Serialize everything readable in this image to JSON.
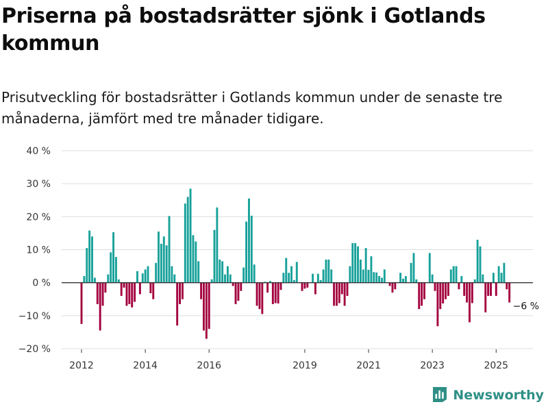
{
  "title": "Priserna på bostadsrätter sjönk i Gotlands kommun",
  "subtitle": "Prisutveckling för bostadsrätter i Gotlands kommun under de senaste tre månaderna, jämfört med tre månader tidigare.",
  "brand": {
    "name": "Newsworthy",
    "icon": "newsworthy-logo-icon"
  },
  "colors": {
    "positive": "#17a19a",
    "negative": "#a3003d",
    "grid": "#dddddd",
    "zero_line": "#333333"
  },
  "chart_data": {
    "type": "bar",
    "title": "Priserna på bostadsrätter sjönk i Gotlands kommun",
    "subtitle": "Prisutveckling för bostadsrätter i Gotlands kommun under de senaste tre månaderna, jämfört med tre månader tidigare.",
    "xlabel": "",
    "ylabel": "",
    "ylim": [
      -20,
      40
    ],
    "y_ticks": [
      40,
      30,
      20,
      10,
      0,
      -10,
      -20
    ],
    "y_tick_labels": [
      "40 %",
      "30 %",
      "20 %",
      "10 %",
      "0 %",
      "−10 %",
      "−20 %"
    ],
    "x_tick_labels": [
      "2012",
      "2014",
      "2016",
      "2019",
      "2021",
      "2023",
      "2025"
    ],
    "x_tick_months": [
      0,
      24,
      48,
      84,
      108,
      132,
      156
    ],
    "start": "2012-01",
    "end": "2025-06",
    "grid": true,
    "annotations": [
      {
        "text": "−6 %",
        "month": 161,
        "value": -6
      }
    ],
    "values": [
      -12.5,
      2,
      10.5,
      15.8,
      14,
      1.5,
      -6.5,
      -14.5,
      -7,
      -3,
      2.5,
      9.2,
      15.3,
      7.8,
      1,
      -4,
      -1.5,
      -7,
      -6.5,
      -7.5,
      -5.8,
      3.5,
      -3.5,
      2.8,
      4,
      5,
      -3.2,
      -5,
      6,
      15.5,
      11.8,
      14,
      11.3,
      20.2,
      5,
      2.5,
      -13,
      -6.5,
      -5,
      24,
      26,
      28.5,
      14.4,
      12.5,
      6.5,
      -5,
      -14.5,
      -17,
      -14,
      1,
      16,
      22.8,
      7,
      6.5,
      2.5,
      5,
      2.5,
      -1,
      -6.5,
      -5.5,
      -2.5,
      4.6,
      18.5,
      25.5,
      20.3,
      5.5,
      -7,
      -8,
      -9.5,
      0.3,
      -3,
      0.5,
      -6.5,
      -6.2,
      -6.3,
      -2.2,
      3,
      7.5,
      3,
      5,
      0.8,
      6.3,
      0,
      -2.5,
      -1.8,
      -1.5,
      0,
      2.7,
      -3.5,
      2.7,
      0.8,
      4,
      7,
      7,
      4,
      -7,
      -7,
      -6.2,
      -3.5,
      -7,
      -4,
      5,
      12,
      12,
      11,
      7,
      4,
      10.5,
      3.9,
      8,
      3.2,
      3.1,
      2,
      1.5,
      4,
      0,
      -1,
      -3,
      -2,
      0,
      3,
      1.2,
      2,
      0,
      6,
      9,
      1,
      -8,
      -7,
      -5,
      0,
      9,
      2.5,
      -2.5,
      -13.2,
      -8,
      -6.3,
      -5,
      -4,
      4,
      5,
      5,
      -2,
      2,
      -4,
      -6,
      -12,
      -6.2,
      1,
      13,
      11,
      2.5,
      -9,
      -4,
      -4,
      3,
      -4,
      5,
      3,
      6,
      -2,
      -6
    ]
  }
}
